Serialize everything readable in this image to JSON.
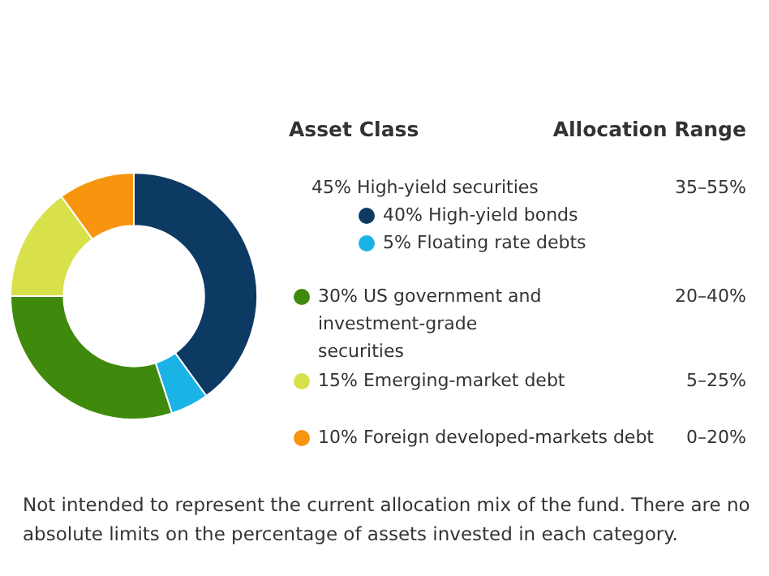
{
  "chart_data": {
    "type": "donut",
    "categories": [
      "High-yield bonds",
      "Floating rate debts",
      "US government and investment-grade securities",
      "Emerging-market debt",
      "Foreign developed-markets debt"
    ],
    "values": [
      40,
      5,
      30,
      15,
      10
    ],
    "colors": [
      "#0d3a63",
      "#19b3e6",
      "#3f8a0c",
      "#d8e04a",
      "#f7950f"
    ],
    "value_labels": [
      "40%",
      "5%",
      "30%",
      "15%",
      "10%"
    ],
    "legend": "right",
    "legend_title": "Asset Class",
    "annotations": [
      "Allocation Range",
      "45%",
      "High-yield securities",
      "35–55%",
      "20–40%",
      "5–25%",
      "0–20%",
      "Not intended to represent the current allocation mix of the fund. There are no absolute limits on the percentage of assets invested in each category."
    ]
  }
}
